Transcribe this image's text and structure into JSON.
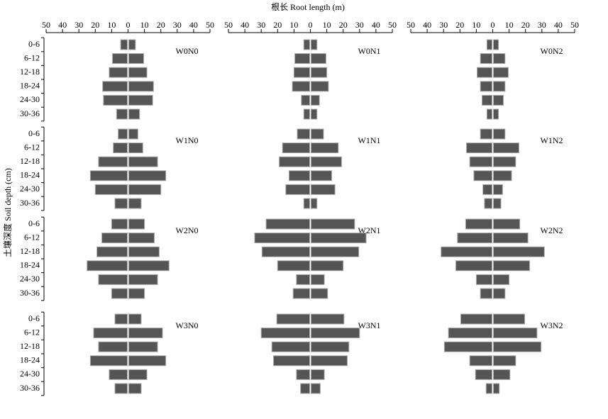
{
  "chart_data": {
    "type": "butterfly",
    "xlabel": "根长 Root length (m)",
    "ylabel": "土壤深度 Soil depth (cm)",
    "categories": [
      "0-6",
      "6-12",
      "12-18",
      "18-24",
      "24-30",
      "30-36"
    ],
    "xlim": [
      -50,
      50
    ],
    "xticks": [
      {
        "value": -50,
        "label": "50"
      },
      {
        "value": -40,
        "label": "40"
      },
      {
        "value": -30,
        "label": "30"
      },
      {
        "value": -20,
        "label": "20"
      },
      {
        "value": -10,
        "label": "10"
      },
      0,
      10,
      20,
      30,
      40,
      50
    ],
    "color": "#555555",
    "panels": [
      {
        "name": "W0N0",
        "values": [
          4.5,
          9.5,
          11.5,
          15.5,
          15,
          7
        ]
      },
      {
        "name": "W0N1",
        "values": [
          4,
          9.5,
          10,
          11,
          5.5,
          4
        ]
      },
      {
        "name": "W0N2",
        "values": [
          3.5,
          7.5,
          9.5,
          7.5,
          6.5,
          3.5
        ]
      },
      {
        "name": "W1N0",
        "values": [
          6,
          9,
          18,
          23,
          20,
          8
        ]
      },
      {
        "name": "W1N1",
        "values": [
          8,
          17,
          19,
          13,
          15,
          4
        ]
      },
      {
        "name": "W1N2",
        "values": [
          7.5,
          16,
          14,
          11.5,
          6,
          5
        ]
      },
      {
        "name": "W2N0",
        "values": [
          10,
          16,
          19,
          25,
          18,
          10
        ]
      },
      {
        "name": "W2N1",
        "values": [
          27,
          34,
          29.5,
          20,
          8.5,
          10.5
        ]
      },
      {
        "name": "W2N2",
        "values": [
          16.5,
          21.5,
          31.5,
          22.5,
          10,
          7.5
        ]
      },
      {
        "name": "W3N0",
        "values": [
          8,
          21,
          18,
          23,
          11.5,
          8
        ]
      },
      {
        "name": "W3N1",
        "values": [
          20.5,
          30,
          23.5,
          22.5,
          8.5,
          6
        ]
      },
      {
        "name": "W3N2",
        "values": [
          19.5,
          27,
          29.5,
          14,
          10.5,
          4
        ]
      }
    ]
  }
}
